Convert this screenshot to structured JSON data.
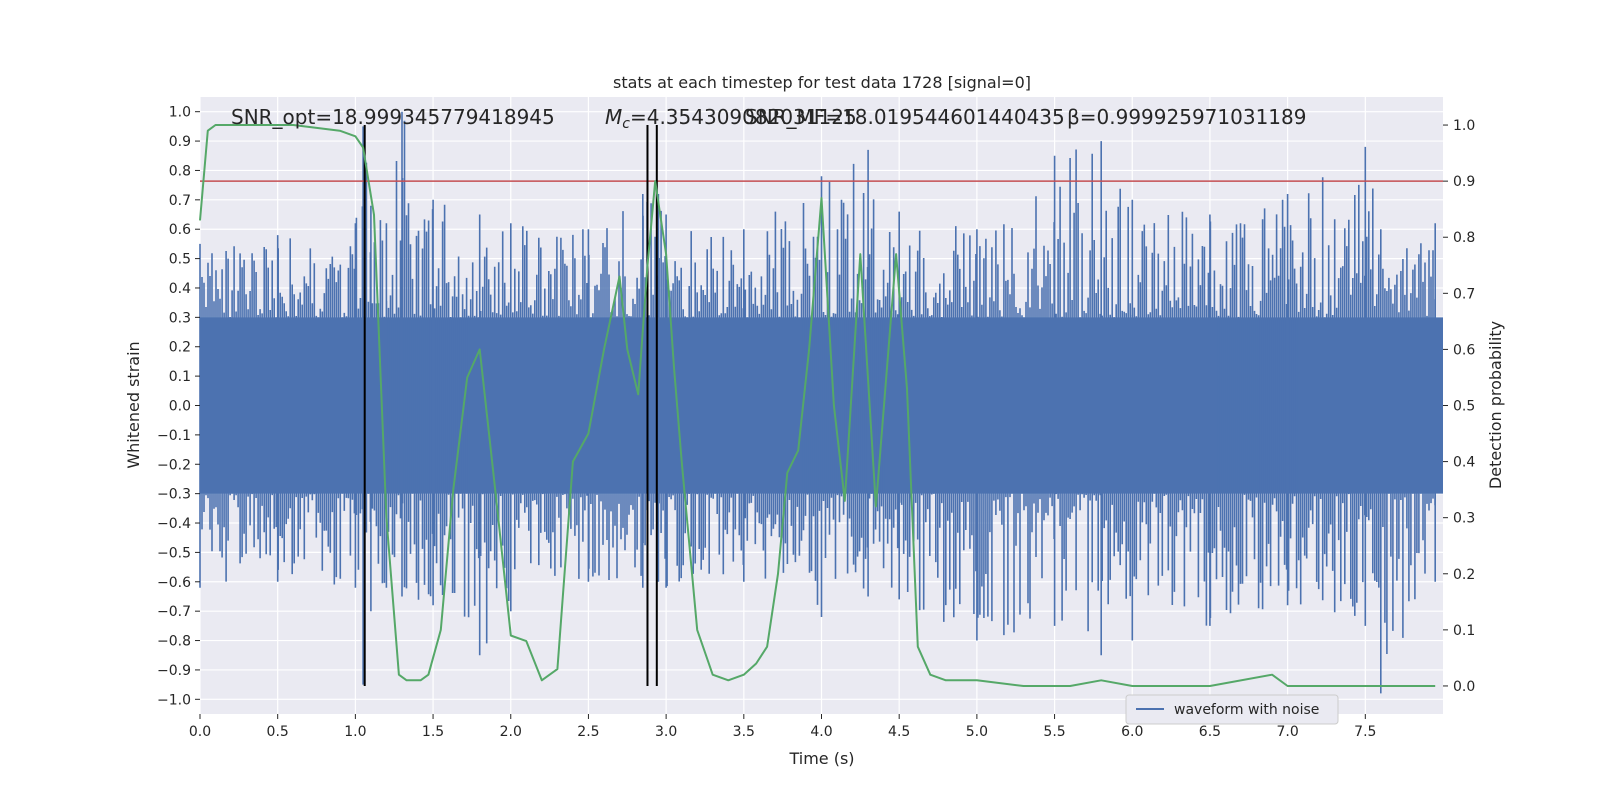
{
  "chart_data": {
    "type": "line",
    "title": "stats at each timestep for test data 1728 [signal=0]",
    "xlabel": "Time (s)",
    "ylabel_left": "Whitened strain",
    "ylabel_right": "Detection probability",
    "xlim": [
      0,
      8
    ],
    "ylim_left": [
      -1.05,
      1.05
    ],
    "ylim_right": [
      -0.05,
      1.05
    ],
    "x_ticks": [
      "0.0",
      "0.5",
      "1.0",
      "1.5",
      "2.0",
      "2.5",
      "3.0",
      "3.5",
      "4.0",
      "4.5",
      "5.0",
      "5.5",
      "6.0",
      "6.5",
      "7.0",
      "7.5"
    ],
    "y_ticks_left": [
      "1.0",
      "0.9",
      "0.8",
      "0.7",
      "0.6",
      "0.5",
      "0.4",
      "0.3",
      "0.2",
      "0.1",
      "0.0",
      "−0.1",
      "−0.2",
      "−0.3",
      "−0.4",
      "−0.5",
      "−0.6",
      "−0.7",
      "−0.8",
      "−0.9",
      "−1.0"
    ],
    "y_ticks_right": [
      "1.0",
      "0.9",
      "0.8",
      "0.7",
      "0.6",
      "0.5",
      "0.4",
      "0.3",
      "0.2",
      "0.1",
      "0.0"
    ],
    "grid": true,
    "legend_position": "bottom-right",
    "annotations": {
      "snr_opt": "SNR_opt=18.999345779418945",
      "mc_symbol": "M",
      "mc_sub": "c",
      "mc_value": "=4.354309082031125",
      "snr_mf": "SNR_MF=18.019544601440435",
      "beta": "β=0.999925971031189"
    },
    "series": [
      {
        "name": "waveform with noise",
        "color": "#4c72b0",
        "axis": "left",
        "envelope": {
          "x": [
            0.0,
            0.5,
            1.0,
            1.05,
            1.1,
            1.2,
            1.3,
            1.5,
            1.8,
            2.0,
            2.5,
            2.85,
            2.95,
            3.0,
            3.5,
            4.0,
            4.3,
            4.5,
            5.0,
            5.5,
            5.8,
            6.0,
            6.5,
            7.0,
            7.5,
            7.6,
            7.95
          ],
          "upper": [
            0.55,
            0.58,
            0.62,
            0.95,
            0.68,
            0.62,
            1.0,
            0.7,
            0.65,
            0.62,
            0.6,
            0.72,
            0.72,
            0.65,
            0.6,
            0.78,
            0.87,
            0.66,
            0.6,
            0.85,
            0.9,
            0.7,
            0.65,
            0.72,
            0.88,
            0.6,
            0.62
          ],
          "lower": [
            -0.62,
            -0.6,
            -0.62,
            -0.95,
            -0.7,
            -0.62,
            -0.65,
            -0.68,
            -0.85,
            -0.7,
            -0.6,
            -0.62,
            -0.6,
            -0.62,
            -0.6,
            -0.72,
            -0.65,
            -0.66,
            -0.8,
            -0.75,
            -0.85,
            -0.8,
            -0.75,
            -0.68,
            -0.75,
            -0.98,
            -0.6
          ]
        }
      },
      {
        "name": "detection probability",
        "color": "#55a868",
        "axis": "right",
        "x": [
          0.0,
          0.05,
          0.1,
          0.3,
          0.6,
          0.9,
          1.0,
          1.05,
          1.12,
          1.2,
          1.28,
          1.33,
          1.42,
          1.47,
          1.55,
          1.63,
          1.72,
          1.8,
          1.9,
          2.0,
          2.1,
          2.2,
          2.3,
          2.4,
          2.5,
          2.6,
          2.7,
          2.75,
          2.82,
          2.88,
          2.93,
          3.0,
          3.05,
          3.1,
          3.2,
          3.3,
          3.4,
          3.5,
          3.58,
          3.65,
          3.72,
          3.78,
          3.85,
          3.92,
          4.0,
          4.08,
          4.15,
          4.25,
          4.35,
          4.48,
          4.55,
          4.62,
          4.7,
          4.8,
          5.0,
          5.3,
          5.6,
          5.8,
          6.0,
          6.5,
          6.9,
          7.0,
          7.3,
          7.6,
          7.95
        ],
        "y": [
          0.83,
          0.99,
          1.0,
          1.0,
          1.0,
          0.99,
          0.98,
          0.96,
          0.84,
          0.3,
          0.02,
          0.01,
          0.01,
          0.02,
          0.1,
          0.35,
          0.55,
          0.6,
          0.35,
          0.09,
          0.08,
          0.01,
          0.03,
          0.4,
          0.45,
          0.6,
          0.73,
          0.6,
          0.52,
          0.75,
          0.9,
          0.77,
          0.57,
          0.4,
          0.1,
          0.02,
          0.01,
          0.02,
          0.04,
          0.07,
          0.2,
          0.38,
          0.42,
          0.6,
          0.87,
          0.5,
          0.33,
          0.77,
          0.32,
          0.77,
          0.53,
          0.07,
          0.02,
          0.01,
          0.01,
          0.0,
          0.0,
          0.01,
          0.0,
          0.0,
          0.02,
          0.0,
          0.0,
          0.0,
          0.0
        ]
      }
    ],
    "reference_lines": {
      "horizontal": {
        "axis": "right",
        "value": 0.9,
        "color": "#c44e52"
      },
      "vertical": [
        1.06,
        2.88,
        2.94
      ],
      "vertical_color": "#000000"
    }
  }
}
